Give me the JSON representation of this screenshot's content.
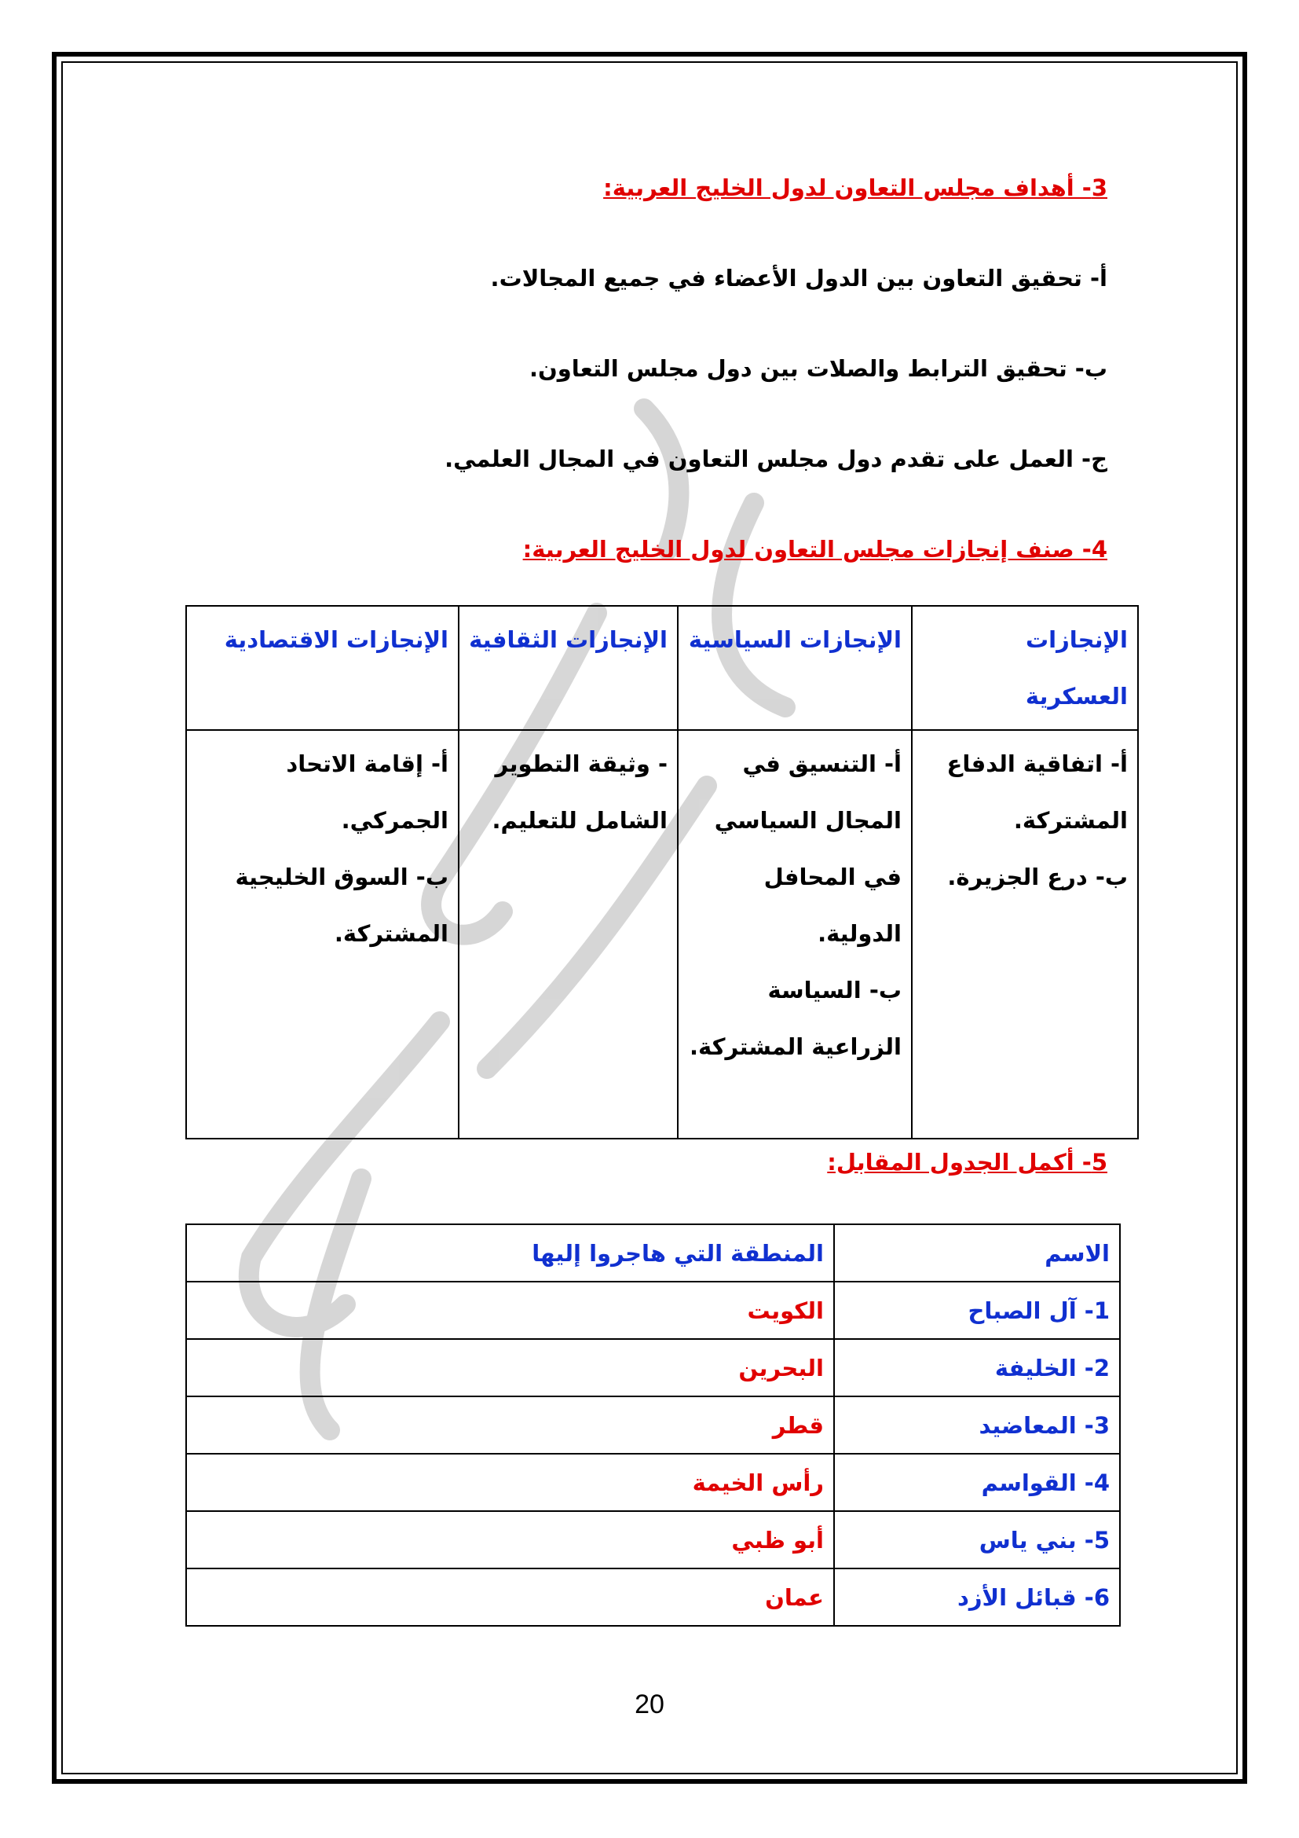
{
  "section3": {
    "heading": "3- أهداف مجلس التعاون لدول الخليج العربية:",
    "items": [
      "أ- تحقيق التعاون بين الدول الأعضاء في جميع المجالات.",
      "ب- تحقيق الترابط والصلات بين دول مجلس التعاون.",
      "ج- العمل على تقدم دول مجلس التعاون في المجال العلمي."
    ]
  },
  "section4": {
    "heading": "4- صنف إنجازات مجلس التعاون لدول الخليج العربية:",
    "table": {
      "headers": [
        "الإنجازات العسكرية",
        "الإنجازات السياسية",
        "الإنجازات الثقافية",
        "الإنجازات الاقتصادية"
      ],
      "cells": [
        [
          "أ- اتفاقية الدفاع المشتركة.",
          "ب- درع الجزيرة."
        ],
        [
          "أ- التنسيق في المجال السياسي في المحافل الدولية.",
          "ب- السياسة الزراعية المشتركة."
        ],
        [
          "- وثيقة التطوير الشامل للتعليم."
        ],
        [
          "أ- إقامة الاتحاد الجمركي.",
          "ب- السوق الخليجية المشتركة."
        ]
      ]
    }
  },
  "section5": {
    "heading": "5- أكمل الجدول المقابل:",
    "table": {
      "headers": [
        "الاسم",
        "المنطقة التي هاجروا إليها"
      ],
      "rows": [
        [
          "1- آل الصباح",
          "الكويت"
        ],
        [
          "2- الخليفة",
          "البحرين"
        ],
        [
          "3- المعاضيد",
          "قطر"
        ],
        [
          "4- القواسم",
          "رأس الخيمة"
        ],
        [
          "5- بني ياس",
          "أبو ظبي"
        ],
        [
          "6- قبائل الأزد",
          "عمان"
        ]
      ]
    }
  },
  "page_number": "20"
}
